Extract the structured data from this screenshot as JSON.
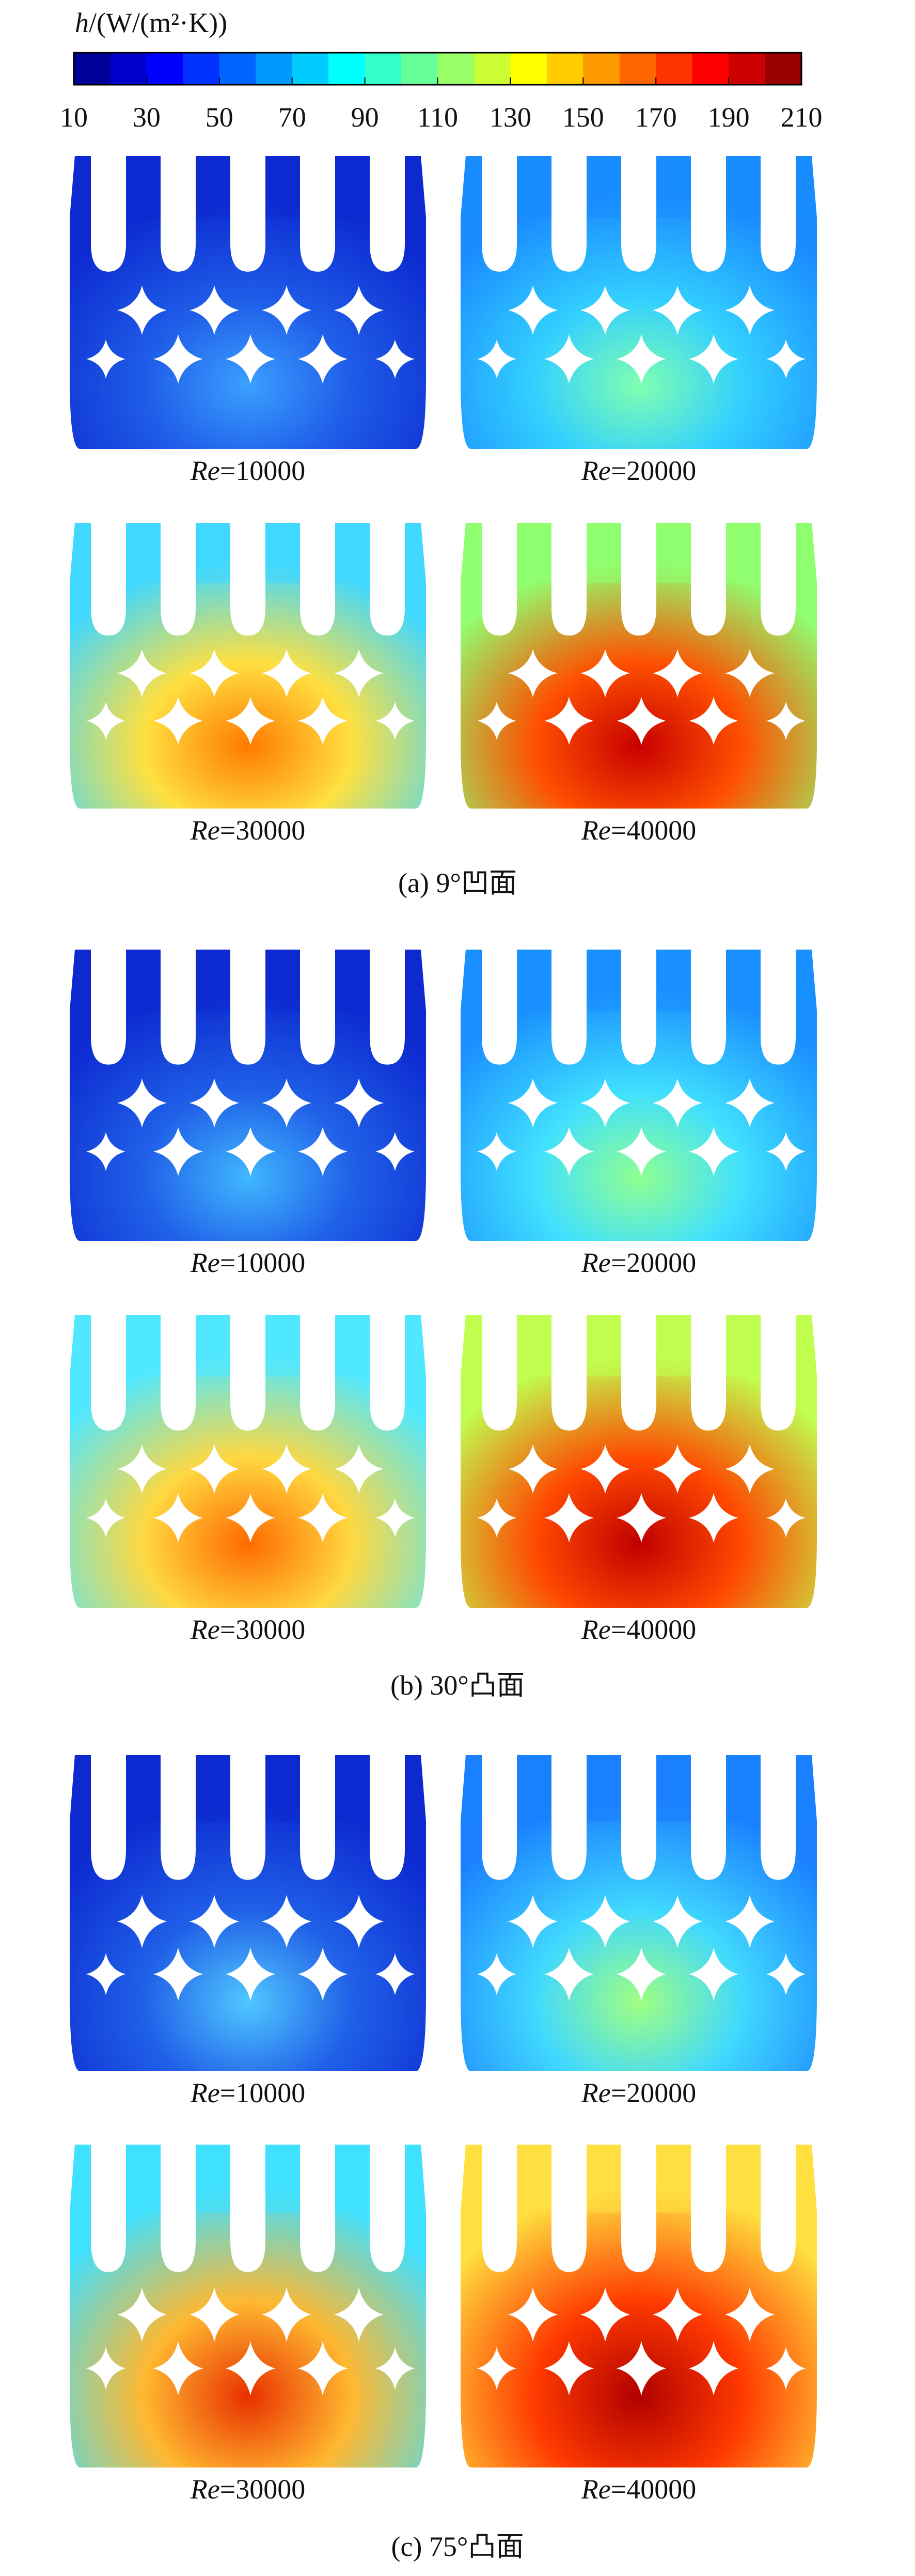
{
  "colorbar": {
    "symbol": "h",
    "unit": "/(W/(m²·K))",
    "lim": [
      10,
      210
    ],
    "ticks": [
      10,
      30,
      50,
      70,
      90,
      110,
      130,
      150,
      170,
      190,
      210
    ]
  },
  "groups": [
    {
      "caption": "(a) 9°凹面",
      "panels": [
        {
          "symbol": "Re",
          "text": "=10000"
        },
        {
          "symbol": "Re",
          "text": "=20000"
        },
        {
          "symbol": "Re",
          "text": "=30000"
        },
        {
          "symbol": "Re",
          "text": "=40000"
        }
      ]
    },
    {
      "caption": "(b) 30°凸面",
      "panels": [
        {
          "symbol": "Re",
          "text": "=10000"
        },
        {
          "symbol": "Re",
          "text": "=20000"
        },
        {
          "symbol": "Re",
          "text": "=30000"
        },
        {
          "symbol": "Re",
          "text": "=40000"
        }
      ]
    },
    {
      "caption": "(c) 75°凸面",
      "panels": [
        {
          "symbol": "Re",
          "text": "=10000"
        },
        {
          "symbol": "Re",
          "text": "=20000"
        },
        {
          "symbol": "Re",
          "text": "=30000"
        },
        {
          "symbol": "Re",
          "text": "=40000"
        }
      ]
    }
  ]
}
